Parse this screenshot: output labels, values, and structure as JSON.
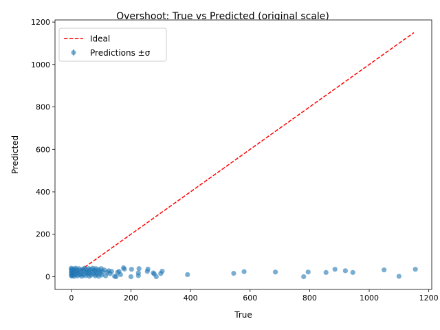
{
  "chart_data": {
    "type": "scatter",
    "title": "Overshoot: True vs Predicted (original scale)",
    "xlabel": "True",
    "ylabel": "Predicted",
    "xlim": [
      -55,
      1210
    ],
    "ylim": [
      -60,
      1210
    ],
    "xticks": [
      0,
      200,
      400,
      600,
      800,
      1000,
      1200
    ],
    "yticks": [
      0,
      200,
      400,
      600,
      800,
      1000,
      1200
    ],
    "grid": false,
    "legend_position": "upper left",
    "series": [
      {
        "name": "Ideal",
        "kind": "line",
        "style": "dashed",
        "color": "#ff0000",
        "x": [
          0,
          1150
        ],
        "y": [
          0,
          1150
        ]
      },
      {
        "name": "Predictions ±σ",
        "kind": "points",
        "color": "#1f77b4",
        "points": [
          [
            0,
            5
          ],
          [
            0,
            12
          ],
          [
            0,
            20
          ],
          [
            0,
            28
          ],
          [
            0,
            35
          ],
          [
            0,
            40
          ],
          [
            2,
            3
          ],
          [
            3,
            18
          ],
          [
            4,
            30
          ],
          [
            5,
            8
          ],
          [
            6,
            22
          ],
          [
            8,
            36
          ],
          [
            10,
            2
          ],
          [
            10,
            15
          ],
          [
            12,
            27
          ],
          [
            14,
            40
          ],
          [
            15,
            10
          ],
          [
            18,
            33
          ],
          [
            20,
            4
          ],
          [
            20,
            25
          ],
          [
            22,
            18
          ],
          [
            25,
            38
          ],
          [
            27,
            8
          ],
          [
            30,
            30
          ],
          [
            32,
            14
          ],
          [
            35,
            2
          ],
          [
            35,
            22
          ],
          [
            38,
            36
          ],
          [
            40,
            10
          ],
          [
            42,
            28
          ],
          [
            45,
            40
          ],
          [
            47,
            5
          ],
          [
            50,
            18
          ],
          [
            50,
            33
          ],
          [
            52,
            24
          ],
          [
            55,
            12
          ],
          [
            58,
            38
          ],
          [
            60,
            2
          ],
          [
            60,
            28
          ],
          [
            62,
            16
          ],
          [
            65,
            35
          ],
          [
            67,
            8
          ],
          [
            70,
            22
          ],
          [
            72,
            40
          ],
          [
            75,
            14
          ],
          [
            77,
            30
          ],
          [
            80,
            4
          ],
          [
            80,
            26
          ],
          [
            82,
            38
          ],
          [
            85,
            10
          ],
          [
            87,
            20
          ],
          [
            90,
            34
          ],
          [
            92,
            2
          ],
          [
            95,
            28
          ],
          [
            97,
            16
          ],
          [
            100,
            38
          ],
          [
            102,
            8
          ],
          [
            105,
            24
          ],
          [
            110,
            32
          ],
          [
            115,
            4
          ],
          [
            120,
            20
          ],
          [
            125,
            28
          ],
          [
            130,
            14
          ],
          [
            135,
            25
          ],
          [
            145,
            2
          ],
          [
            150,
            0
          ],
          [
            155,
            20
          ],
          [
            160,
            25
          ],
          [
            165,
            10
          ],
          [
            175,
            42
          ],
          [
            178,
            36
          ],
          [
            200,
            0
          ],
          [
            202,
            35
          ],
          [
            225,
            5
          ],
          [
            225,
            18
          ],
          [
            227,
            38
          ],
          [
            255,
            25
          ],
          [
            257,
            36
          ],
          [
            275,
            18
          ],
          [
            278,
            13
          ],
          [
            285,
            0
          ],
          [
            300,
            15
          ],
          [
            305,
            26
          ],
          [
            390,
            10
          ],
          [
            545,
            16
          ],
          [
            580,
            24
          ],
          [
            685,
            22
          ],
          [
            780,
            0
          ],
          [
            795,
            22
          ],
          [
            855,
            20
          ],
          [
            885,
            35
          ],
          [
            920,
            28
          ],
          [
            945,
            20
          ],
          [
            1050,
            32
          ],
          [
            1100,
            2
          ],
          [
            1155,
            35
          ]
        ]
      }
    ]
  }
}
